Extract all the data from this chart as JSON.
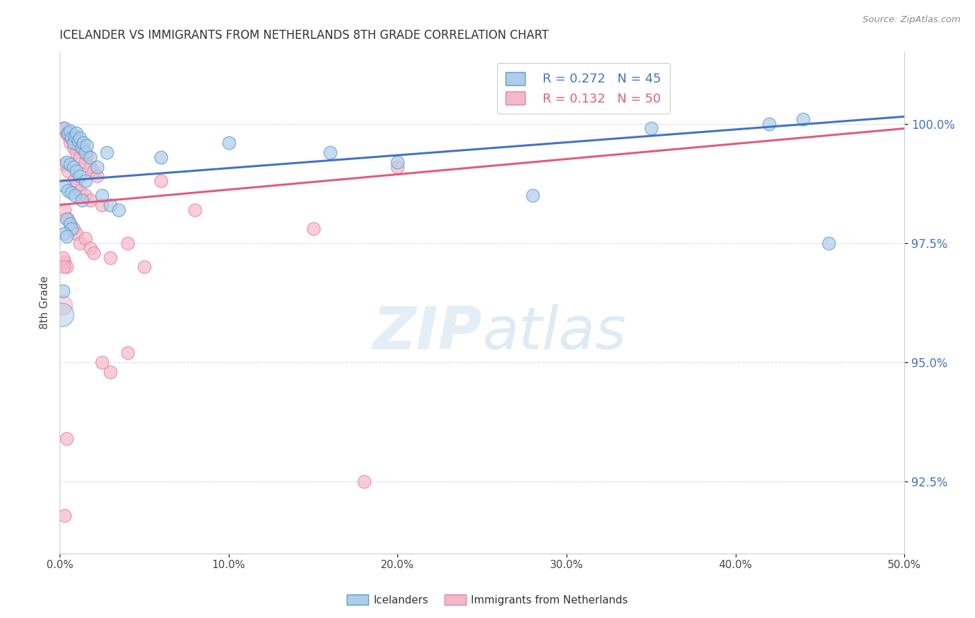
{
  "title": "ICELANDER VS IMMIGRANTS FROM NETHERLANDS 8TH GRADE CORRELATION CHART",
  "source": "Source: ZipAtlas.com",
  "xlabel_ticks": [
    "0.0%",
    "10.0%",
    "20.0%",
    "30.0%",
    "40.0%",
    "50.0%"
  ],
  "xlabel_vals": [
    0.0,
    10.0,
    20.0,
    30.0,
    40.0,
    50.0
  ],
  "ylabel": "8th Grade",
  "ylabel_ticks": [
    "92.5%",
    "95.0%",
    "97.5%",
    "100.0%"
  ],
  "ylabel_vals": [
    92.5,
    95.0,
    97.5,
    100.0
  ],
  "xlim": [
    0.0,
    50.0
  ],
  "ylim": [
    91.0,
    101.5
  ],
  "legend_blue_r": "R = 0.272",
  "legend_blue_n": "N = 45",
  "legend_pink_r": "R = 0.132",
  "legend_pink_n": "N = 50",
  "blue_color": "#aecde8",
  "pink_color": "#f4b8c8",
  "blue_edge_color": "#5b9bd5",
  "pink_edge_color": "#e87fa0",
  "blue_line_color": "#4472c4",
  "pink_line_color": "#e05c7a",
  "ytick_color": "#4472c4",
  "watermark_zip_color": "#c8dff0",
  "watermark_atlas_color": "#c0d8e8",
  "blue_scatter": [
    [
      0.3,
      99.9
    ],
    [
      0.5,
      99.8
    ],
    [
      0.6,
      99.85
    ],
    [
      0.7,
      99.7
    ],
    [
      0.8,
      99.6
    ],
    [
      0.9,
      99.75
    ],
    [
      1.0,
      99.8
    ],
    [
      1.1,
      99.65
    ],
    [
      1.2,
      99.7
    ],
    [
      1.3,
      99.5
    ],
    [
      1.4,
      99.6
    ],
    [
      1.5,
      99.4
    ],
    [
      1.6,
      99.55
    ],
    [
      1.8,
      99.3
    ],
    [
      0.4,
      99.2
    ],
    [
      0.6,
      99.15
    ],
    [
      0.8,
      99.1
    ],
    [
      1.0,
      99.0
    ],
    [
      1.2,
      98.9
    ],
    [
      1.5,
      98.8
    ],
    [
      0.3,
      98.7
    ],
    [
      0.5,
      98.6
    ],
    [
      0.7,
      98.55
    ],
    [
      0.9,
      98.5
    ],
    [
      1.3,
      98.4
    ],
    [
      2.5,
      98.5
    ],
    [
      3.0,
      98.3
    ],
    [
      3.5,
      98.2
    ],
    [
      2.8,
      99.4
    ],
    [
      0.4,
      98.0
    ],
    [
      0.6,
      97.9
    ],
    [
      0.7,
      97.8
    ],
    [
      0.3,
      97.7
    ],
    [
      0.4,
      97.65
    ],
    [
      6.0,
      99.3
    ],
    [
      10.0,
      99.6
    ],
    [
      16.0,
      99.4
    ],
    [
      20.0,
      99.2
    ],
    [
      28.0,
      98.5
    ],
    [
      35.0,
      99.9
    ],
    [
      42.0,
      100.0
    ],
    [
      44.0,
      100.1
    ],
    [
      45.5,
      97.5
    ],
    [
      0.2,
      96.5
    ],
    [
      2.2,
      99.1
    ]
  ],
  "pink_scatter": [
    [
      0.2,
      99.9
    ],
    [
      0.4,
      99.8
    ],
    [
      0.5,
      99.75
    ],
    [
      0.6,
      99.6
    ],
    [
      0.7,
      99.7
    ],
    [
      0.8,
      99.5
    ],
    [
      0.9,
      99.6
    ],
    [
      1.0,
      99.4
    ],
    [
      1.1,
      99.55
    ],
    [
      1.2,
      99.3
    ],
    [
      1.4,
      99.45
    ],
    [
      1.5,
      99.2
    ],
    [
      1.6,
      99.35
    ],
    [
      1.8,
      99.1
    ],
    [
      2.0,
      99.0
    ],
    [
      2.2,
      98.9
    ],
    [
      0.3,
      99.15
    ],
    [
      0.5,
      99.0
    ],
    [
      0.8,
      98.8
    ],
    [
      1.0,
      98.7
    ],
    [
      1.2,
      98.6
    ],
    [
      1.5,
      98.5
    ],
    [
      1.8,
      98.4
    ],
    [
      2.5,
      98.3
    ],
    [
      0.3,
      98.2
    ],
    [
      0.5,
      98.0
    ],
    [
      0.6,
      97.9
    ],
    [
      0.8,
      97.8
    ],
    [
      1.0,
      97.7
    ],
    [
      1.2,
      97.5
    ],
    [
      1.5,
      97.6
    ],
    [
      1.8,
      97.4
    ],
    [
      2.0,
      97.3
    ],
    [
      0.3,
      97.1
    ],
    [
      0.4,
      97.0
    ],
    [
      3.0,
      97.2
    ],
    [
      0.2,
      97.2
    ],
    [
      0.25,
      97.0
    ],
    [
      4.0,
      97.5
    ],
    [
      6.0,
      98.8
    ],
    [
      0.4,
      93.4
    ],
    [
      15.0,
      97.8
    ],
    [
      20.0,
      99.1
    ],
    [
      0.3,
      91.8
    ],
    [
      18.0,
      92.5
    ],
    [
      2.5,
      95.0
    ],
    [
      3.0,
      94.8
    ],
    [
      4.0,
      95.2
    ],
    [
      5.0,
      97.0
    ],
    [
      8.0,
      98.2
    ]
  ],
  "blue_trendline_x": [
    0.0,
    50.0
  ],
  "blue_trendline_y": [
    98.8,
    100.15
  ],
  "pink_trendline_x": [
    0.0,
    50.0
  ],
  "pink_trendline_y": [
    98.3,
    99.9
  ]
}
